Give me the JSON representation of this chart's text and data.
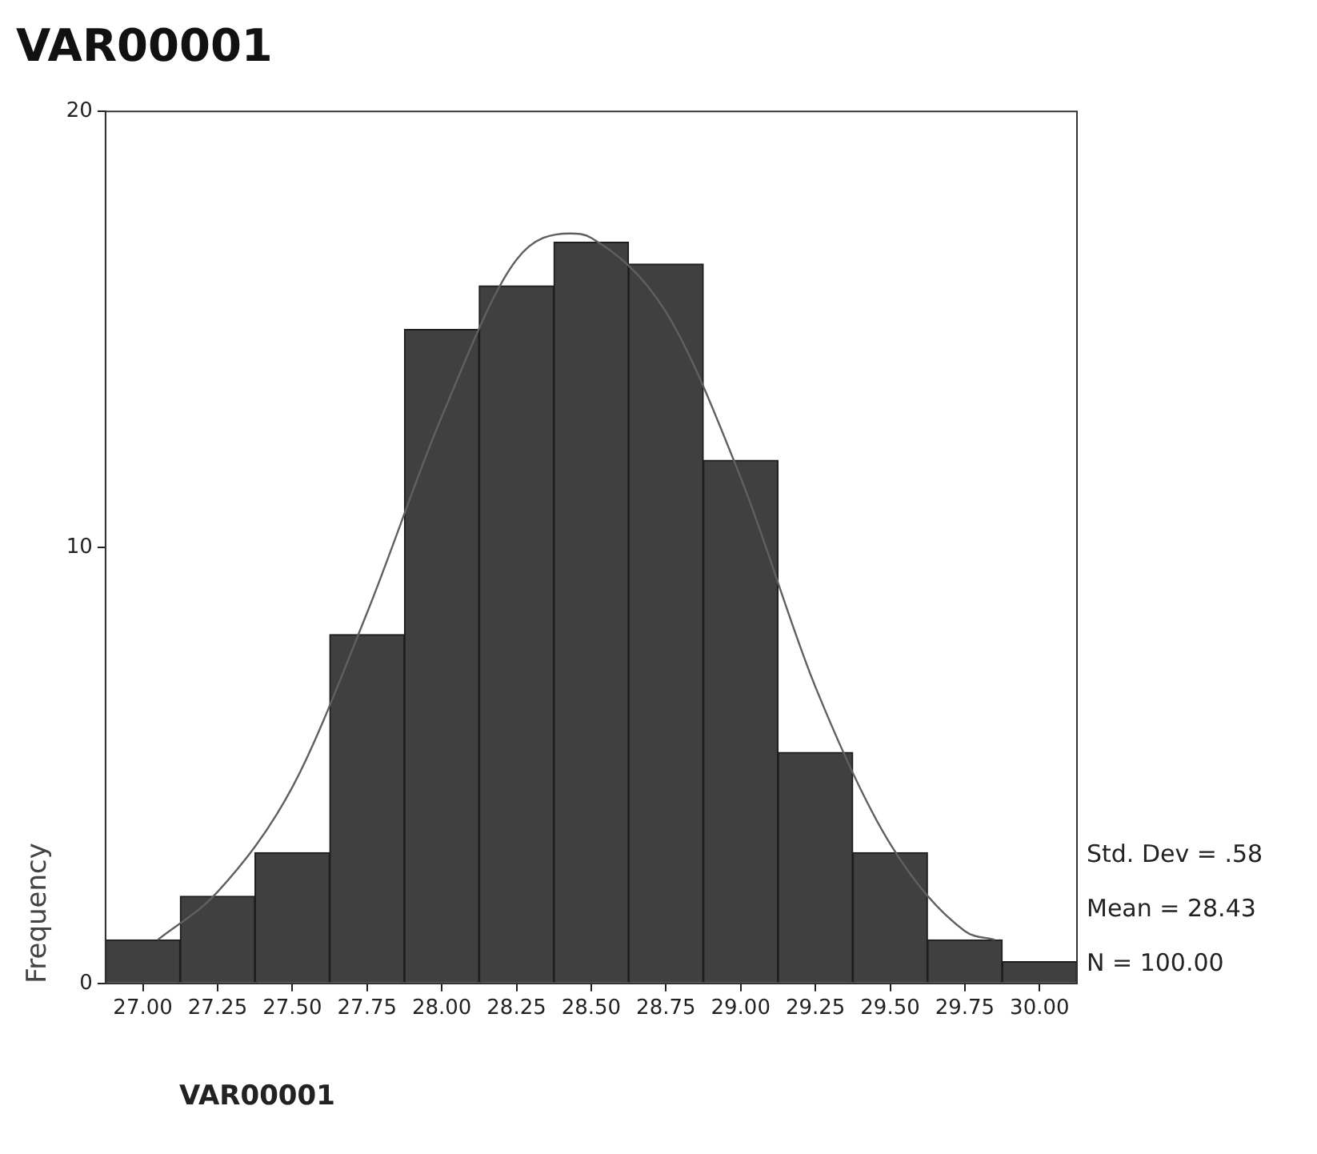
{
  "chart_data": {
    "type": "histogram",
    "title": "VAR00001",
    "xlabel": "VAR00001",
    "ylabel": "Frequency",
    "bins": [
      26.875,
      27.125,
      27.375,
      27.625,
      27.875,
      28.125,
      28.375,
      28.625,
      28.875,
      29.125,
      29.375,
      29.625,
      29.875,
      30.125
    ],
    "series": [
      {
        "type": "histogram",
        "color": "#404040",
        "values": [
          1,
          2,
          3,
          8,
          15,
          16,
          17,
          16.5,
          12,
          5.3,
          3,
          1,
          0.5
        ]
      },
      {
        "type": "line",
        "color": "#606060",
        "x": [
          27.05,
          27.25,
          27.5,
          27.75,
          28.0,
          28.25,
          28.43,
          28.5,
          28.75,
          29.0,
          29.25,
          29.5,
          29.75,
          29.85
        ],
        "values": [
          1.0,
          2.1,
          4.5,
          8.5,
          13,
          16.6,
          17.2,
          17.1,
          15.4,
          11.6,
          6.8,
          3.2,
          1.2,
          1.0
        ]
      }
    ],
    "marker": "none",
    "xlim": [
      26.875,
      30.125
    ],
    "ylim": [
      0,
      20
    ],
    "xticks": [
      {
        "value": 27,
        "label": "27.00"
      },
      {
        "value": 27.25,
        "label": "27.25"
      },
      {
        "value": 27.5,
        "label": "27.50"
      },
      {
        "value": 27.75,
        "label": "27.75"
      },
      {
        "value": 28,
        "label": "28.00"
      },
      {
        "value": 28.25,
        "label": "28.25"
      },
      {
        "value": 28.5,
        "label": "28.50"
      },
      {
        "value": 28.75,
        "label": "28.75"
      },
      {
        "value": 29,
        "label": "29.00"
      },
      {
        "value": 29.25,
        "label": "29.25"
      },
      {
        "value": 29.5,
        "label": "29.50"
      },
      {
        "value": 29.75,
        "label": "29.75"
      },
      {
        "value": 30,
        "label": "30.00"
      }
    ],
    "yticks": [
      0,
      10,
      20
    ],
    "annotations": [
      "Std. Dev = .58",
      "Mean = 28.43",
      "N = 100.00"
    ]
  }
}
